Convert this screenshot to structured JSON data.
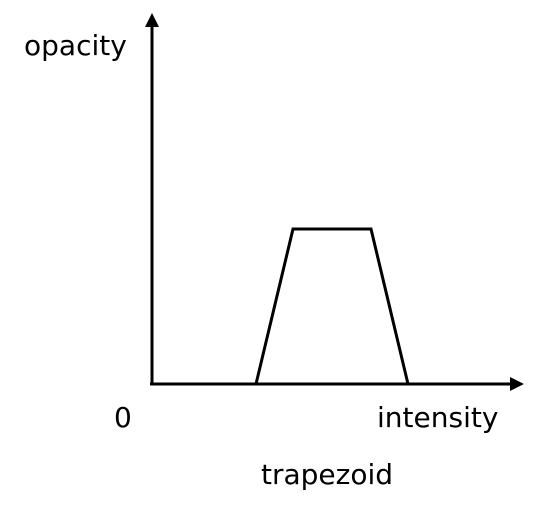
{
  "diagram": {
    "y_axis_label": "opacity",
    "x_axis_label": "intensity",
    "origin_label": "0",
    "caption": "trapezoid",
    "shape": "trapezoid",
    "line_color": "#000000",
    "background": "#ffffff"
  }
}
